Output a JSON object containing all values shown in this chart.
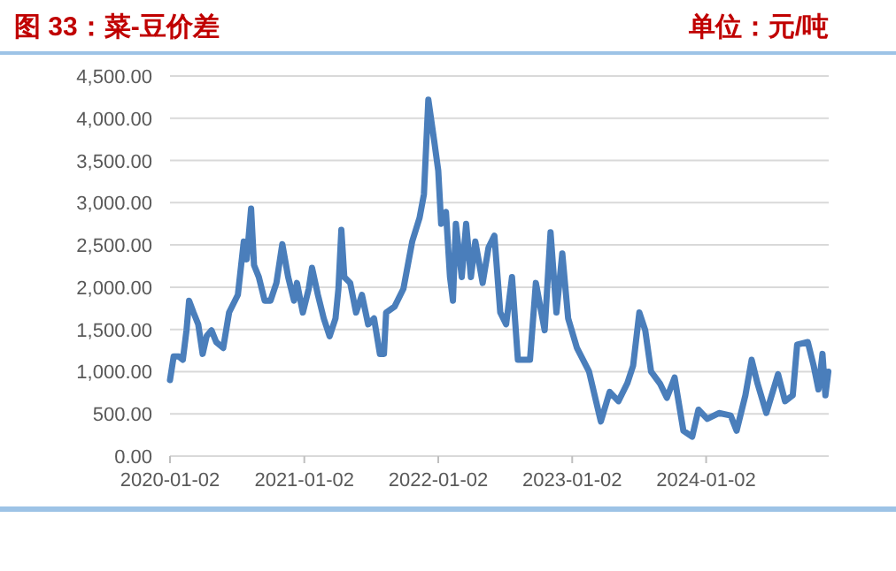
{
  "chart_data": {
    "type": "line",
    "title": "图 33：菜-豆价差",
    "subtitle": "单位：元/吨",
    "x": [
      "2020-01-02",
      "2020-01-12",
      "2020-01-26",
      "2020-02-06",
      "2020-02-16",
      "2020-02-23",
      "2020-03-06",
      "2020-03-19",
      "2020-03-31",
      "2020-04-11",
      "2020-04-24",
      "2020-05-07",
      "2020-05-26",
      "2020-06-11",
      "2020-07-05",
      "2020-07-21",
      "2020-07-29",
      "2020-08-10",
      "2020-08-18",
      "2020-08-31",
      "2020-09-16",
      "2020-10-02",
      "2020-10-18",
      "2020-11-03",
      "2020-11-19",
      "2020-12-05",
      "2020-12-13",
      "2020-12-29",
      "2021-01-14",
      "2021-01-23",
      "2021-02-08",
      "2021-02-24",
      "2021-03-12",
      "2021-03-28",
      "2021-04-05",
      "2021-04-13",
      "2021-04-21",
      "2021-05-07",
      "2021-05-23",
      "2021-06-08",
      "2021-06-25",
      "2021-07-11",
      "2021-07-27",
      "2021-08-07",
      "2021-08-13",
      "2021-09-05",
      "2021-09-29",
      "2021-10-23",
      "2021-11-12",
      "2021-11-24",
      "2021-12-06",
      "2021-12-22",
      "2022-01-02",
      "2022-01-10",
      "2022-01-23",
      "2022-02-03",
      "2022-02-11",
      "2022-02-19",
      "2022-03-07",
      "2022-03-19",
      "2022-04-01",
      "2022-04-13",
      "2022-05-03",
      "2022-05-19",
      "2022-06-04",
      "2022-06-20",
      "2022-07-06",
      "2022-07-22",
      "2022-08-07",
      "2022-09-09",
      "2022-09-25",
      "2022-10-19",
      "2022-11-04",
      "2022-11-20",
      "2022-12-06",
      "2022-12-22",
      "2023-01-15",
      "2023-02-17",
      "2023-03-21",
      "2023-04-14",
      "2023-05-08",
      "2023-06-01",
      "2023-06-17",
      "2023-07-04",
      "2023-07-20",
      "2023-08-05",
      "2023-08-29",
      "2023-09-17",
      "2023-10-08",
      "2023-11-01",
      "2023-11-25",
      "2023-12-12",
      "2024-01-05",
      "2024-02-06",
      "2024-03-09",
      "2024-03-25",
      "2024-04-18",
      "2024-05-05",
      "2024-05-21",
      "2024-06-14",
      "2024-07-16",
      "2024-08-04",
      "2024-08-25",
      "2024-09-06",
      "2024-10-05",
      "2024-10-21",
      "2024-11-03",
      "2024-11-14",
      "2024-11-22",
      "2024-11-30"
    ],
    "series": [
      {
        "color": "#4a7ebb",
        "values": [
          900,
          1180,
          1180,
          1140,
          1490,
          1840,
          1700,
          1560,
          1210,
          1420,
          1490,
          1350,
          1280,
          1700,
          1910,
          2540,
          2330,
          2930,
          2260,
          2120,
          1840,
          1840,
          2050,
          2510,
          2120,
          1840,
          2050,
          1700,
          1980,
          2230,
          1910,
          1630,
          1420,
          1630,
          1980,
          2680,
          2120,
          2050,
          1700,
          1910,
          1560,
          1630,
          1210,
          1210,
          1700,
          1770,
          1980,
          2540,
          2820,
          3100,
          4220,
          3730,
          3380,
          2750,
          2890,
          2120,
          1840,
          2750,
          2120,
          2750,
          2120,
          2540,
          2050,
          2470,
          2610,
          1700,
          1560,
          2120,
          1140,
          1140,
          2050,
          1490,
          2650,
          1700,
          2400,
          1630,
          1280,
          1000,
          410,
          760,
          650,
          860,
          1070,
          1700,
          1490,
          1000,
          860,
          690,
          930,
          300,
          230,
          550,
          440,
          510,
          480,
          300,
          720,
          1140,
          860,
          510,
          970,
          650,
          720,
          1320,
          1350,
          1070,
          790,
          1210,
          720,
          1000
        ]
      }
    ],
    "xlim": [
      "2020-01-02",
      "2024-12-01"
    ],
    "xticks": [
      {
        "value": "2020-01-02",
        "label": "2020-01-02"
      },
      {
        "value": "2021-01-02",
        "label": "2021-01-02"
      },
      {
        "value": "2022-01-02",
        "label": "2022-01-02"
      },
      {
        "value": "2023-01-02",
        "label": "2023-01-02"
      },
      {
        "value": "2024-01-02",
        "label": "2024-01-02"
      }
    ],
    "ylim": [
      0,
      4500
    ],
    "yticks": [
      {
        "value": 0,
        "label": "0.00"
      },
      {
        "value": 500,
        "label": "500.00"
      },
      {
        "value": 1000,
        "label": "1,000.00"
      },
      {
        "value": 1500,
        "label": "1,500.00"
      },
      {
        "value": 2000,
        "label": "2,000.00"
      },
      {
        "value": 2500,
        "label": "2,500.00"
      },
      {
        "value": 3000,
        "label": "3,000.00"
      },
      {
        "value": 3500,
        "label": "3,500.00"
      },
      {
        "value": 4000,
        "label": "4,000.00"
      },
      {
        "value": 4500,
        "label": "4,500.00"
      }
    ],
    "grid": "y",
    "marker": "none",
    "line_style": "solid"
  }
}
